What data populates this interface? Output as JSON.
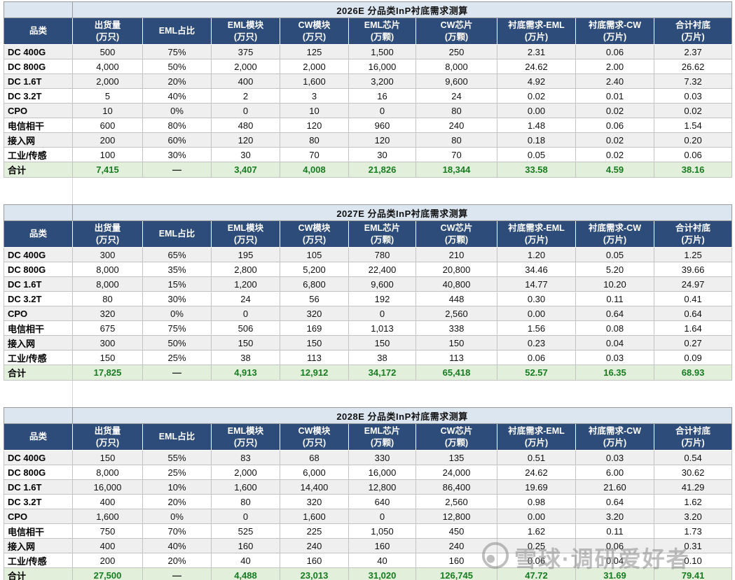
{
  "colors": {
    "page_bg": "#ffffff",
    "header_bg": "#2e4c7a",
    "header_text": "#ffffff",
    "title_bg": "#dce6f1",
    "title_text": "#1f3864",
    "row_alt_bg": "#efefef",
    "row_bg": "#ffffff",
    "total_bg": "#e2efda",
    "total_text": "#177c21",
    "grid_line": "#c3c3c3",
    "outer_border": "#9b9b9b",
    "text": "#111111",
    "watermark": "#8a8a8a"
  },
  "watermark": {
    "icon": "xueqiu-snowball-logo",
    "text": "雪球·调研爱好者"
  },
  "columns": [
    {
      "label": "品类",
      "unit": ""
    },
    {
      "label": "出货量",
      "unit": "(万只)"
    },
    {
      "label": "EML占比",
      "unit": ""
    },
    {
      "label": "EML模块",
      "unit": "(万只)"
    },
    {
      "label": "CW模块",
      "unit": "(万只)"
    },
    {
      "label": "EML芯片",
      "unit": "(万颗)"
    },
    {
      "label": "CW芯片",
      "unit": "(万颗)"
    },
    {
      "label": "衬底需求-EML",
      "unit": "(万片)"
    },
    {
      "label": "衬底需求-CW",
      "unit": "(万片)"
    },
    {
      "label": "合计衬底",
      "unit": "(万片)"
    }
  ],
  "tables": [
    {
      "title": "2026E 分品类InP衬底需求测算",
      "rows": [
        {
          "label": "DC 400G",
          "values": [
            "500",
            "75%",
            "375",
            "125",
            "1,500",
            "250",
            "2.31",
            "0.06",
            "2.37"
          ]
        },
        {
          "label": "DC 800G",
          "values": [
            "4,000",
            "50%",
            "2,000",
            "2,000",
            "16,000",
            "8,000",
            "24.62",
            "2.00",
            "26.62"
          ]
        },
        {
          "label": "DC 1.6T",
          "values": [
            "2,000",
            "20%",
            "400",
            "1,600",
            "3,200",
            "9,600",
            "4.92",
            "2.40",
            "7.32"
          ]
        },
        {
          "label": "DC 3.2T",
          "values": [
            "5",
            "40%",
            "2",
            "3",
            "16",
            "24",
            "0.02",
            "0.01",
            "0.03"
          ]
        },
        {
          "label": "CPO",
          "values": [
            "10",
            "0%",
            "0",
            "10",
            "0",
            "80",
            "0.00",
            "0.02",
            "0.02"
          ]
        },
        {
          "label": "电信相干",
          "values": [
            "600",
            "80%",
            "480",
            "120",
            "960",
            "240",
            "1.48",
            "0.06",
            "1.54"
          ]
        },
        {
          "label": "接入网",
          "values": [
            "200",
            "60%",
            "120",
            "80",
            "120",
            "80",
            "0.18",
            "0.02",
            "0.20"
          ]
        },
        {
          "label": "工业/传感",
          "values": [
            "100",
            "30%",
            "30",
            "70",
            "30",
            "70",
            "0.05",
            "0.02",
            "0.06"
          ]
        }
      ],
      "total": {
        "label": "合计",
        "values": [
          "7,415",
          "—",
          "3,407",
          "4,008",
          "21,826",
          "18,344",
          "33.58",
          "4.59",
          "38.16"
        ]
      }
    },
    {
      "title": "2027E 分品类InP衬底需求测算",
      "rows": [
        {
          "label": "DC 400G",
          "values": [
            "300",
            "65%",
            "195",
            "105",
            "780",
            "210",
            "1.20",
            "0.05",
            "1.25"
          ]
        },
        {
          "label": "DC 800G",
          "values": [
            "8,000",
            "35%",
            "2,800",
            "5,200",
            "22,400",
            "20,800",
            "34.46",
            "5.20",
            "39.66"
          ]
        },
        {
          "label": "DC 1.6T",
          "values": [
            "8,000",
            "15%",
            "1,200",
            "6,800",
            "9,600",
            "40,800",
            "14.77",
            "10.20",
            "24.97"
          ]
        },
        {
          "label": "DC 3.2T",
          "values": [
            "80",
            "30%",
            "24",
            "56",
            "192",
            "448",
            "0.30",
            "0.11",
            "0.41"
          ]
        },
        {
          "label": "CPO",
          "values": [
            "320",
            "0%",
            "0",
            "320",
            "0",
            "2,560",
            "0.00",
            "0.64",
            "0.64"
          ]
        },
        {
          "label": "电信相干",
          "values": [
            "675",
            "75%",
            "506",
            "169",
            "1,013",
            "338",
            "1.56",
            "0.08",
            "1.64"
          ]
        },
        {
          "label": "接入网",
          "values": [
            "300",
            "50%",
            "150",
            "150",
            "150",
            "150",
            "0.23",
            "0.04",
            "0.27"
          ]
        },
        {
          "label": "工业/传感",
          "values": [
            "150",
            "25%",
            "38",
            "113",
            "38",
            "113",
            "0.06",
            "0.03",
            "0.09"
          ]
        }
      ],
      "total": {
        "label": "合计",
        "values": [
          "17,825",
          "—",
          "4,913",
          "12,912",
          "34,172",
          "65,418",
          "52.57",
          "16.35",
          "68.93"
        ]
      }
    },
    {
      "title": "2028E 分品类InP衬底需求测算",
      "rows": [
        {
          "label": "DC 400G",
          "values": [
            "150",
            "55%",
            "83",
            "68",
            "330",
            "135",
            "0.51",
            "0.03",
            "0.54"
          ]
        },
        {
          "label": "DC 800G",
          "values": [
            "8,000",
            "25%",
            "2,000",
            "6,000",
            "16,000",
            "24,000",
            "24.62",
            "6.00",
            "30.62"
          ]
        },
        {
          "label": "DC 1.6T",
          "values": [
            "16,000",
            "10%",
            "1,600",
            "14,400",
            "12,800",
            "86,400",
            "19.69",
            "21.60",
            "41.29"
          ]
        },
        {
          "label": "DC 3.2T",
          "values": [
            "400",
            "20%",
            "80",
            "320",
            "640",
            "2,560",
            "0.98",
            "0.64",
            "1.62"
          ]
        },
        {
          "label": "CPO",
          "values": [
            "1,600",
            "0%",
            "0",
            "1,600",
            "0",
            "12,800",
            "0.00",
            "3.20",
            "3.20"
          ]
        },
        {
          "label": "电信相干",
          "values": [
            "750",
            "70%",
            "525",
            "225",
            "1,050",
            "450",
            "1.62",
            "0.11",
            "1.73"
          ]
        },
        {
          "label": "接入网",
          "values": [
            "400",
            "40%",
            "160",
            "240",
            "160",
            "240",
            "0.25",
            "0.06",
            "0.31"
          ]
        },
        {
          "label": "工业/传感",
          "values": [
            "200",
            "20%",
            "40",
            "160",
            "40",
            "160",
            "0.06",
            "0.04",
            "0.10"
          ]
        }
      ],
      "total": {
        "label": "合计",
        "values": [
          "27,500",
          "—",
          "4,488",
          "23,013",
          "31,020",
          "126,745",
          "47.72",
          "31.69",
          "79.41"
        ]
      }
    }
  ]
}
